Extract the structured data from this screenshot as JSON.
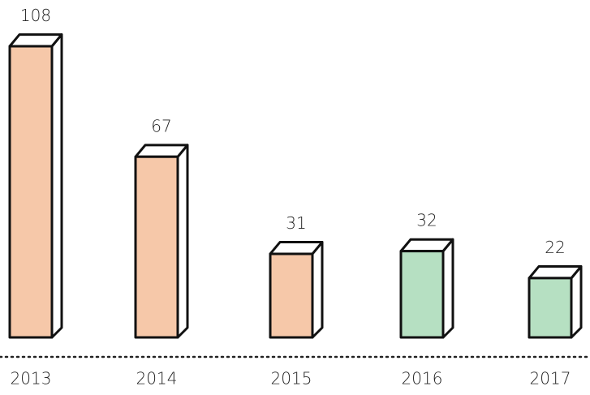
{
  "chart_data": {
    "type": "bar",
    "categories": [
      "2013",
      "2014",
      "2015",
      "2016",
      "2017"
    ],
    "values": [
      108,
      67,
      31,
      32,
      22
    ],
    "colors": [
      "#f6c8a9",
      "#f6c8a9",
      "#f6c8a9",
      "#b6e0c2",
      "#b6e0c2"
    ]
  }
}
